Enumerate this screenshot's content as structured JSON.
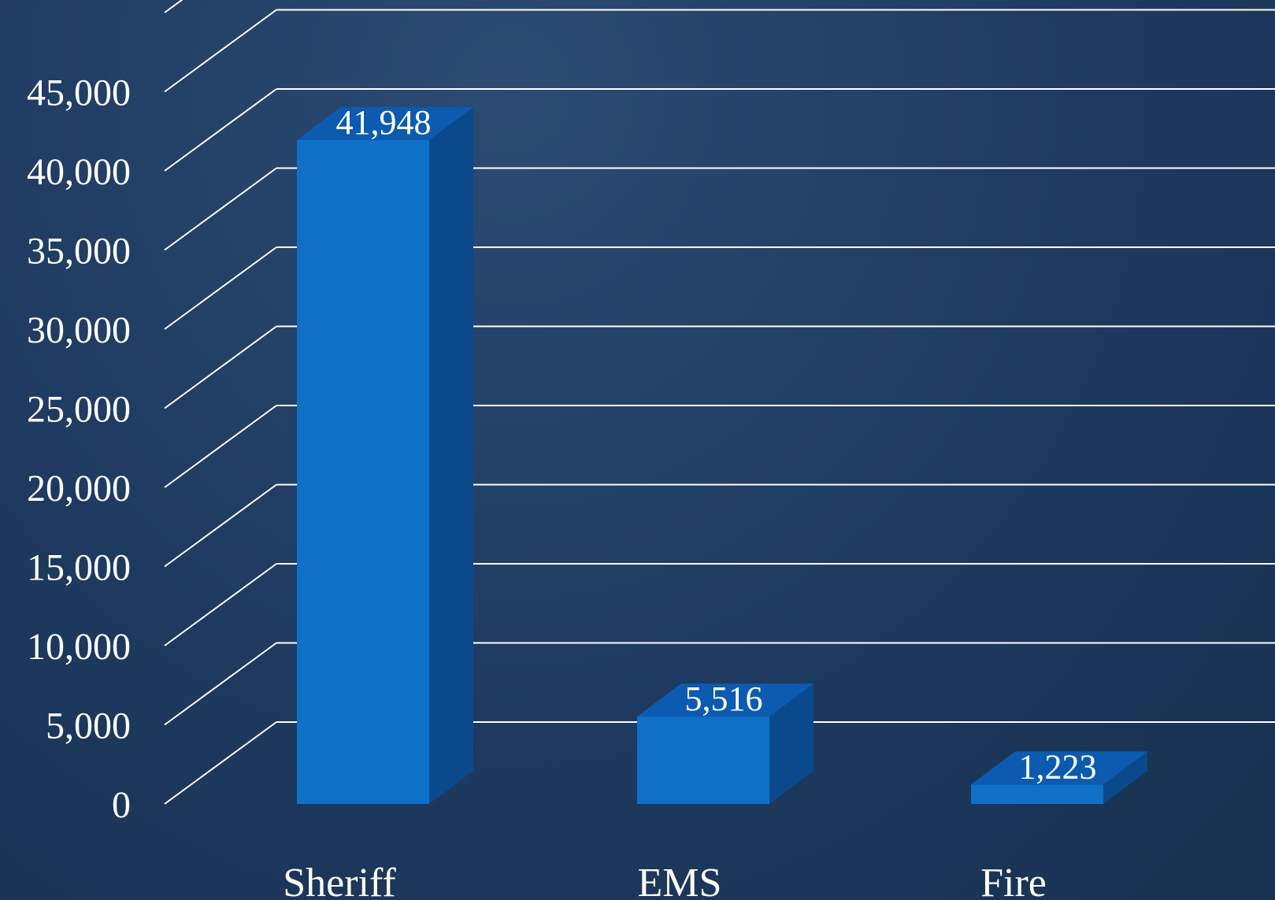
{
  "chart_data": {
    "type": "bar",
    "style": "3d",
    "categories": [
      "Sheriff",
      "EMS",
      "Fire"
    ],
    "values": [
      41948,
      5516,
      1223
    ],
    "data_labels": [
      "41,948",
      "5,516",
      "1,223"
    ],
    "y_ticks": [
      0,
      5000,
      10000,
      15000,
      20000,
      25000,
      30000,
      35000,
      40000,
      45000
    ],
    "y_tick_labels": [
      "0",
      "5,000",
      "10,000",
      "15,000",
      "20,000",
      "25,000",
      "30,000",
      "35,000",
      "40,000",
      "45,000"
    ],
    "ylim": [
      0,
      50000
    ],
    "grid": true,
    "legend": "none",
    "colors": {
      "bar_front": "#1070c8",
      "bar_top": "#0d5bb0",
      "bar_side": "#0a4a8c",
      "gridline": "#ffffff",
      "text": "#ffffff"
    }
  }
}
